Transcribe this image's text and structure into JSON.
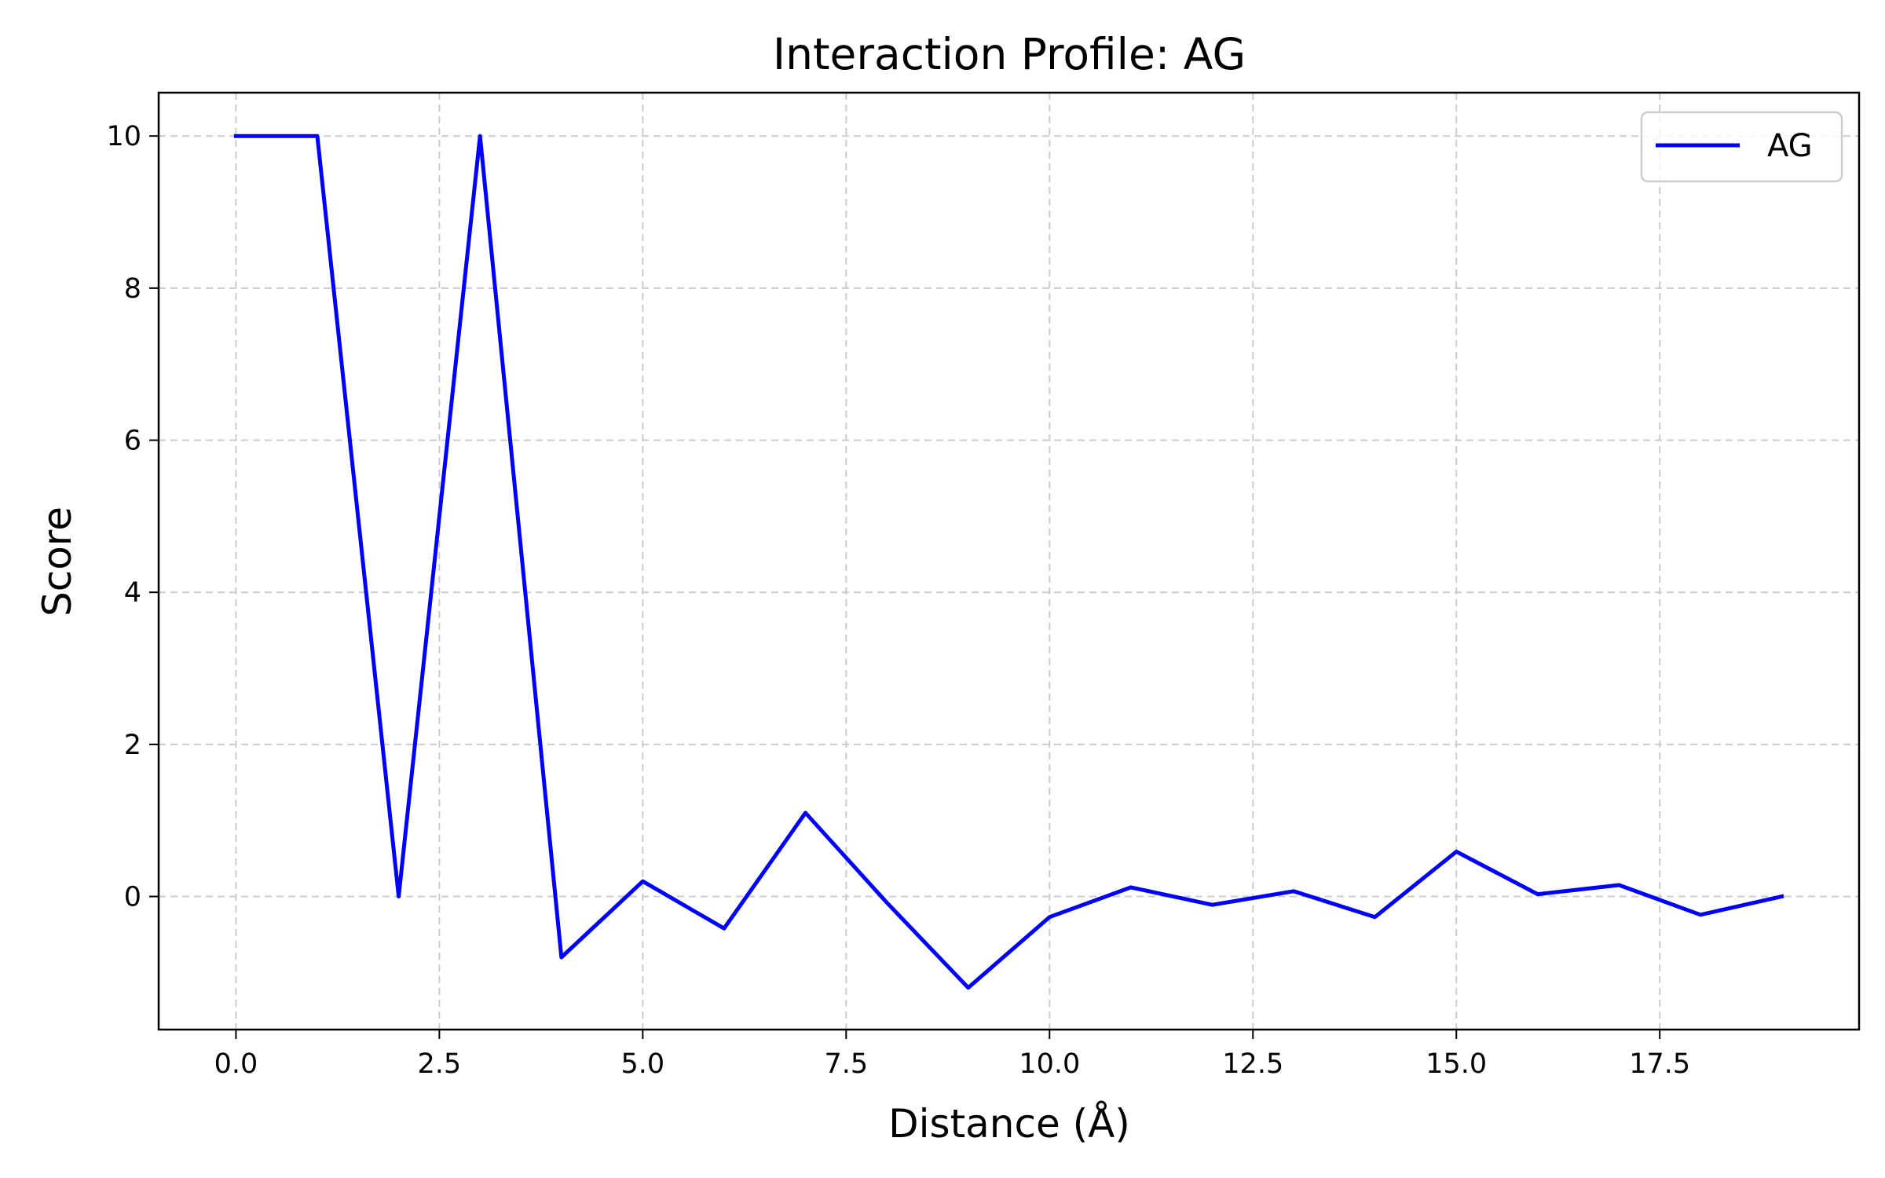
{
  "chart_data": {
    "type": "line",
    "title": "Interaction Profile: AG",
    "xlabel": "Distance (Å)",
    "ylabel": "Score",
    "xlim": [
      -0.95,
      19.95
    ],
    "ylim": [
      -1.75,
      10.57
    ],
    "x_ticks": [
      0.0,
      2.5,
      5.0,
      7.5,
      10.0,
      12.5,
      15.0,
      17.5
    ],
    "x_tick_labels": [
      "0.0",
      "2.5",
      "5.0",
      "7.5",
      "10.0",
      "12.5",
      "15.0",
      "17.5"
    ],
    "y_ticks": [
      0,
      2,
      4,
      6,
      8,
      10
    ],
    "y_tick_labels": [
      "0",
      "2",
      "4",
      "6",
      "8",
      "10"
    ],
    "grid": true,
    "legend_position": "top-right",
    "series": [
      {
        "name": "AG",
        "color": "#0000ff",
        "x": [
          0,
          1,
          2,
          3,
          4,
          5,
          6,
          7,
          8,
          9,
          10,
          11,
          12,
          13,
          14,
          15,
          16,
          17,
          18,
          19
        ],
        "values": [
          10.0,
          10.0,
          0.0,
          10.0,
          -0.8,
          0.2,
          -0.42,
          1.1,
          -0.08,
          -1.2,
          -0.27,
          0.12,
          -0.11,
          0.07,
          -0.27,
          0.59,
          0.03,
          0.15,
          -0.24,
          0.0
        ]
      }
    ]
  }
}
